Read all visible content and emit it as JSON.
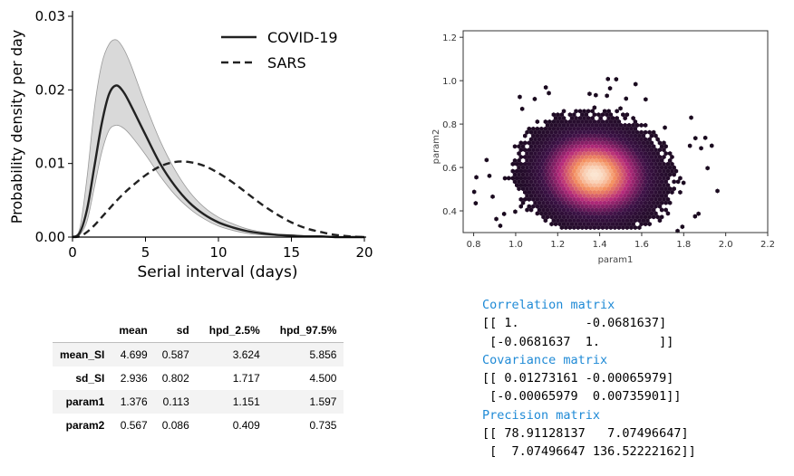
{
  "chart_data": [
    {
      "type": "line",
      "title": "",
      "xlabel": "Serial interval (days)",
      "ylabel": "Probability density per day",
      "xlim": [
        0,
        20
      ],
      "ylim": [
        0,
        0.03
      ],
      "xticks": [
        "0",
        "5",
        "10",
        "15",
        "20"
      ],
      "yticks": [
        "0.00",
        "0.01",
        "0.02",
        "0.03"
      ],
      "legend": "top-right",
      "series": [
        {
          "name": "COVID-19",
          "style": "solid",
          "x": [
            0,
            0.5,
            1,
            1.5,
            2,
            2.5,
            3,
            3.5,
            4,
            5,
            6,
            7,
            8,
            9,
            10,
            11,
            12,
            13,
            14,
            15,
            16,
            17,
            18,
            19,
            20
          ],
          "values": [
            0,
            0.0006,
            0.0038,
            0.0096,
            0.0154,
            0.0194,
            0.0206,
            0.0197,
            0.0179,
            0.0139,
            0.01,
            0.007,
            0.0047,
            0.0031,
            0.002,
            0.0013,
            0.0008,
            0.0005,
            0.0003,
            0.0002,
            0.0001,
            0.0001,
            0,
            0,
            0
          ],
          "band_lower": [
            0,
            0.0003,
            0.0022,
            0.0068,
            0.0115,
            0.0145,
            0.0152,
            0.0148,
            0.0138,
            0.0112,
            0.0083,
            0.0058,
            0.0039,
            0.0025,
            0.0015,
            0.0009,
            0.0005,
            0.0003,
            0.0002,
            0.0001,
            0,
            0,
            0,
            0,
            0
          ],
          "band_upper": [
            0,
            0.0012,
            0.0082,
            0.0175,
            0.0235,
            0.0262,
            0.0268,
            0.0256,
            0.0234,
            0.018,
            0.0131,
            0.0092,
            0.0062,
            0.0041,
            0.0027,
            0.0018,
            0.0011,
            0.0007,
            0.0004,
            0.0003,
            0.0002,
            0.0001,
            0.0001,
            0,
            0
          ]
        },
        {
          "name": "SARS",
          "style": "dashed",
          "x": [
            0,
            0.5,
            1,
            1.5,
            2,
            2.5,
            3,
            3.5,
            4,
            5,
            6,
            7,
            8,
            9,
            10,
            11,
            12,
            13,
            14,
            15,
            16,
            17,
            18,
            19,
            20
          ],
          "values": [
            0,
            0.0001,
            0.0007,
            0.0016,
            0.0027,
            0.0038,
            0.0049,
            0.0059,
            0.0068,
            0.0084,
            0.0096,
            0.0102,
            0.0102,
            0.0097,
            0.0087,
            0.0074,
            0.0059,
            0.0044,
            0.0031,
            0.002,
            0.0012,
            0.0007,
            0.0003,
            0.0001,
            0
          ]
        }
      ]
    },
    {
      "type": "heatmap",
      "title": "",
      "xlabel": "param1",
      "ylabel": "param2",
      "xlim": [
        0.75,
        2.2
      ],
      "ylim": [
        0.3,
        1.23
      ],
      "xticks": [
        "0.8",
        "1.0",
        "1.2",
        "1.4",
        "1.6",
        "1.8",
        "2.0",
        "2.2"
      ],
      "yticks": [
        "0.4",
        "0.6",
        "0.8",
        "1.0",
        "1.2"
      ],
      "distribution": {
        "mean": [
          1.376,
          0.567
        ],
        "covariance": [
          [
            0.01273161,
            -0.00065979
          ],
          [
            -0.00065979,
            0.00735901
          ]
        ]
      },
      "colors": {
        "background": "#ffffff",
        "low": "#1a0a1f",
        "mid": "#b5297a",
        "high": "#f48f5e",
        "peak": "#fbe6d2"
      }
    },
    {
      "type": "table",
      "columns": [
        "",
        "mean",
        "sd",
        "hpd_2.5%",
        "hpd_97.5%"
      ],
      "rows": [
        {
          "label": "mean_SI",
          "values": [
            "4.699",
            "0.587",
            "3.624",
            "5.856"
          ]
        },
        {
          "label": "sd_SI",
          "values": [
            "2.936",
            "0.802",
            "1.717",
            "4.500"
          ]
        },
        {
          "label": "param1",
          "values": [
            "1.376",
            "0.113",
            "1.151",
            "1.597"
          ]
        },
        {
          "label": "param2",
          "values": [
            "0.567",
            "0.086",
            "0.409",
            "0.735"
          ]
        }
      ]
    }
  ],
  "matrices": [
    {
      "title": "Correlation matrix",
      "lines": [
        "[[ 1.         -0.0681637]",
        " [-0.0681637  1.        ]]"
      ]
    },
    {
      "title": "Covariance matrix",
      "lines": [
        "[[ 0.01273161 -0.00065979]",
        " [-0.00065979  0.00735901]]"
      ]
    },
    {
      "title": "Precision matrix",
      "lines": [
        "[[ 78.91128137   7.07496647]",
        " [  7.07496647 136.52222162]]"
      ]
    }
  ],
  "colors": {
    "band": "#d9d9d9",
    "line": "#222222",
    "matrix_title": "#1f8ad6"
  }
}
